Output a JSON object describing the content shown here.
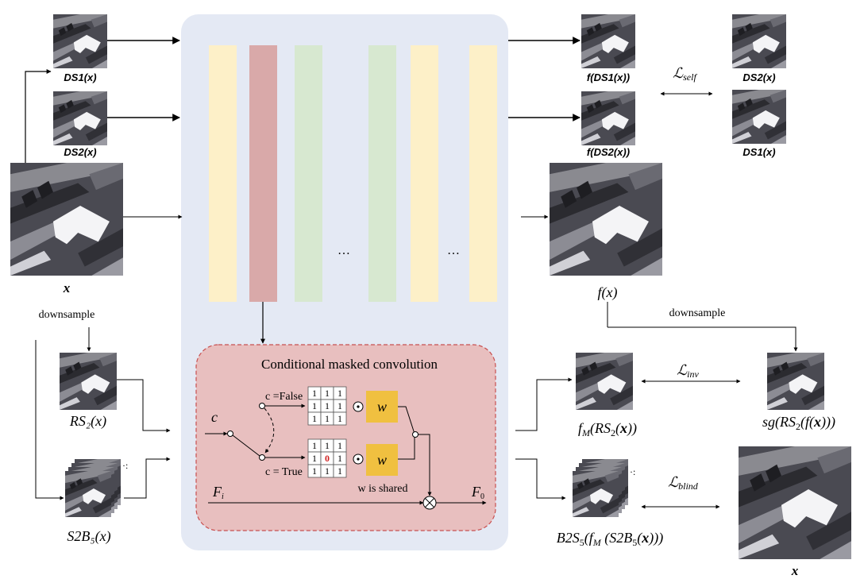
{
  "labels": {
    "ds1_x": "DS1(x)",
    "ds2_x": "DS2(x)",
    "x_main": "x",
    "downsample_left": "downsample",
    "rs2_x": "RS₂(x)",
    "s2b5_x": "S2B₅(x)",
    "f_ds1": "f(DS1(x))",
    "f_ds2": "f(DS2(x))",
    "ds2_right": "DS2(x)",
    "ds1_right": "DS1(x)",
    "loss_self": "ℒself",
    "f_x": "f(x)",
    "downsample_right": "downsample",
    "loss_inv": "ℒinv",
    "fm_rs2": "fM(RS₂(x))",
    "sg_rs2": "sg(RS₂(f(x)))",
    "loss_blind": "ℒblind",
    "b2s5": "B2S₅(fM(S2B₅(x)))",
    "x_bottom": "x",
    "ellipsis_1": "…",
    "ellipsis_2": "…"
  },
  "cmc": {
    "title": "Conditional masked convolution",
    "c_input": "c",
    "c_false": "c =False",
    "c_true": "c = True",
    "w": "w",
    "w_shared": "w is shared",
    "f_in": "Fi",
    "f_out": "F0",
    "kernel_false": [
      "1",
      "1",
      "1",
      "1",
      "1",
      "1",
      "1",
      "1",
      "1"
    ],
    "kernel_true": [
      "1",
      "1",
      "1",
      "1",
      "0",
      "1",
      "1",
      "1",
      "1"
    ],
    "odot": "⊙",
    "otimes": "⊗"
  },
  "colors": {
    "panel_bg": "#e4e9f4",
    "layer_yellow": "#fdf0c8",
    "layer_red": "#d9a9a9",
    "layer_green": "#d7e8d0",
    "cmc_bg": "#e8bfbf",
    "cmc_border": "#c85050",
    "w_box": "#f0c040",
    "zero_red": "#d02020"
  }
}
